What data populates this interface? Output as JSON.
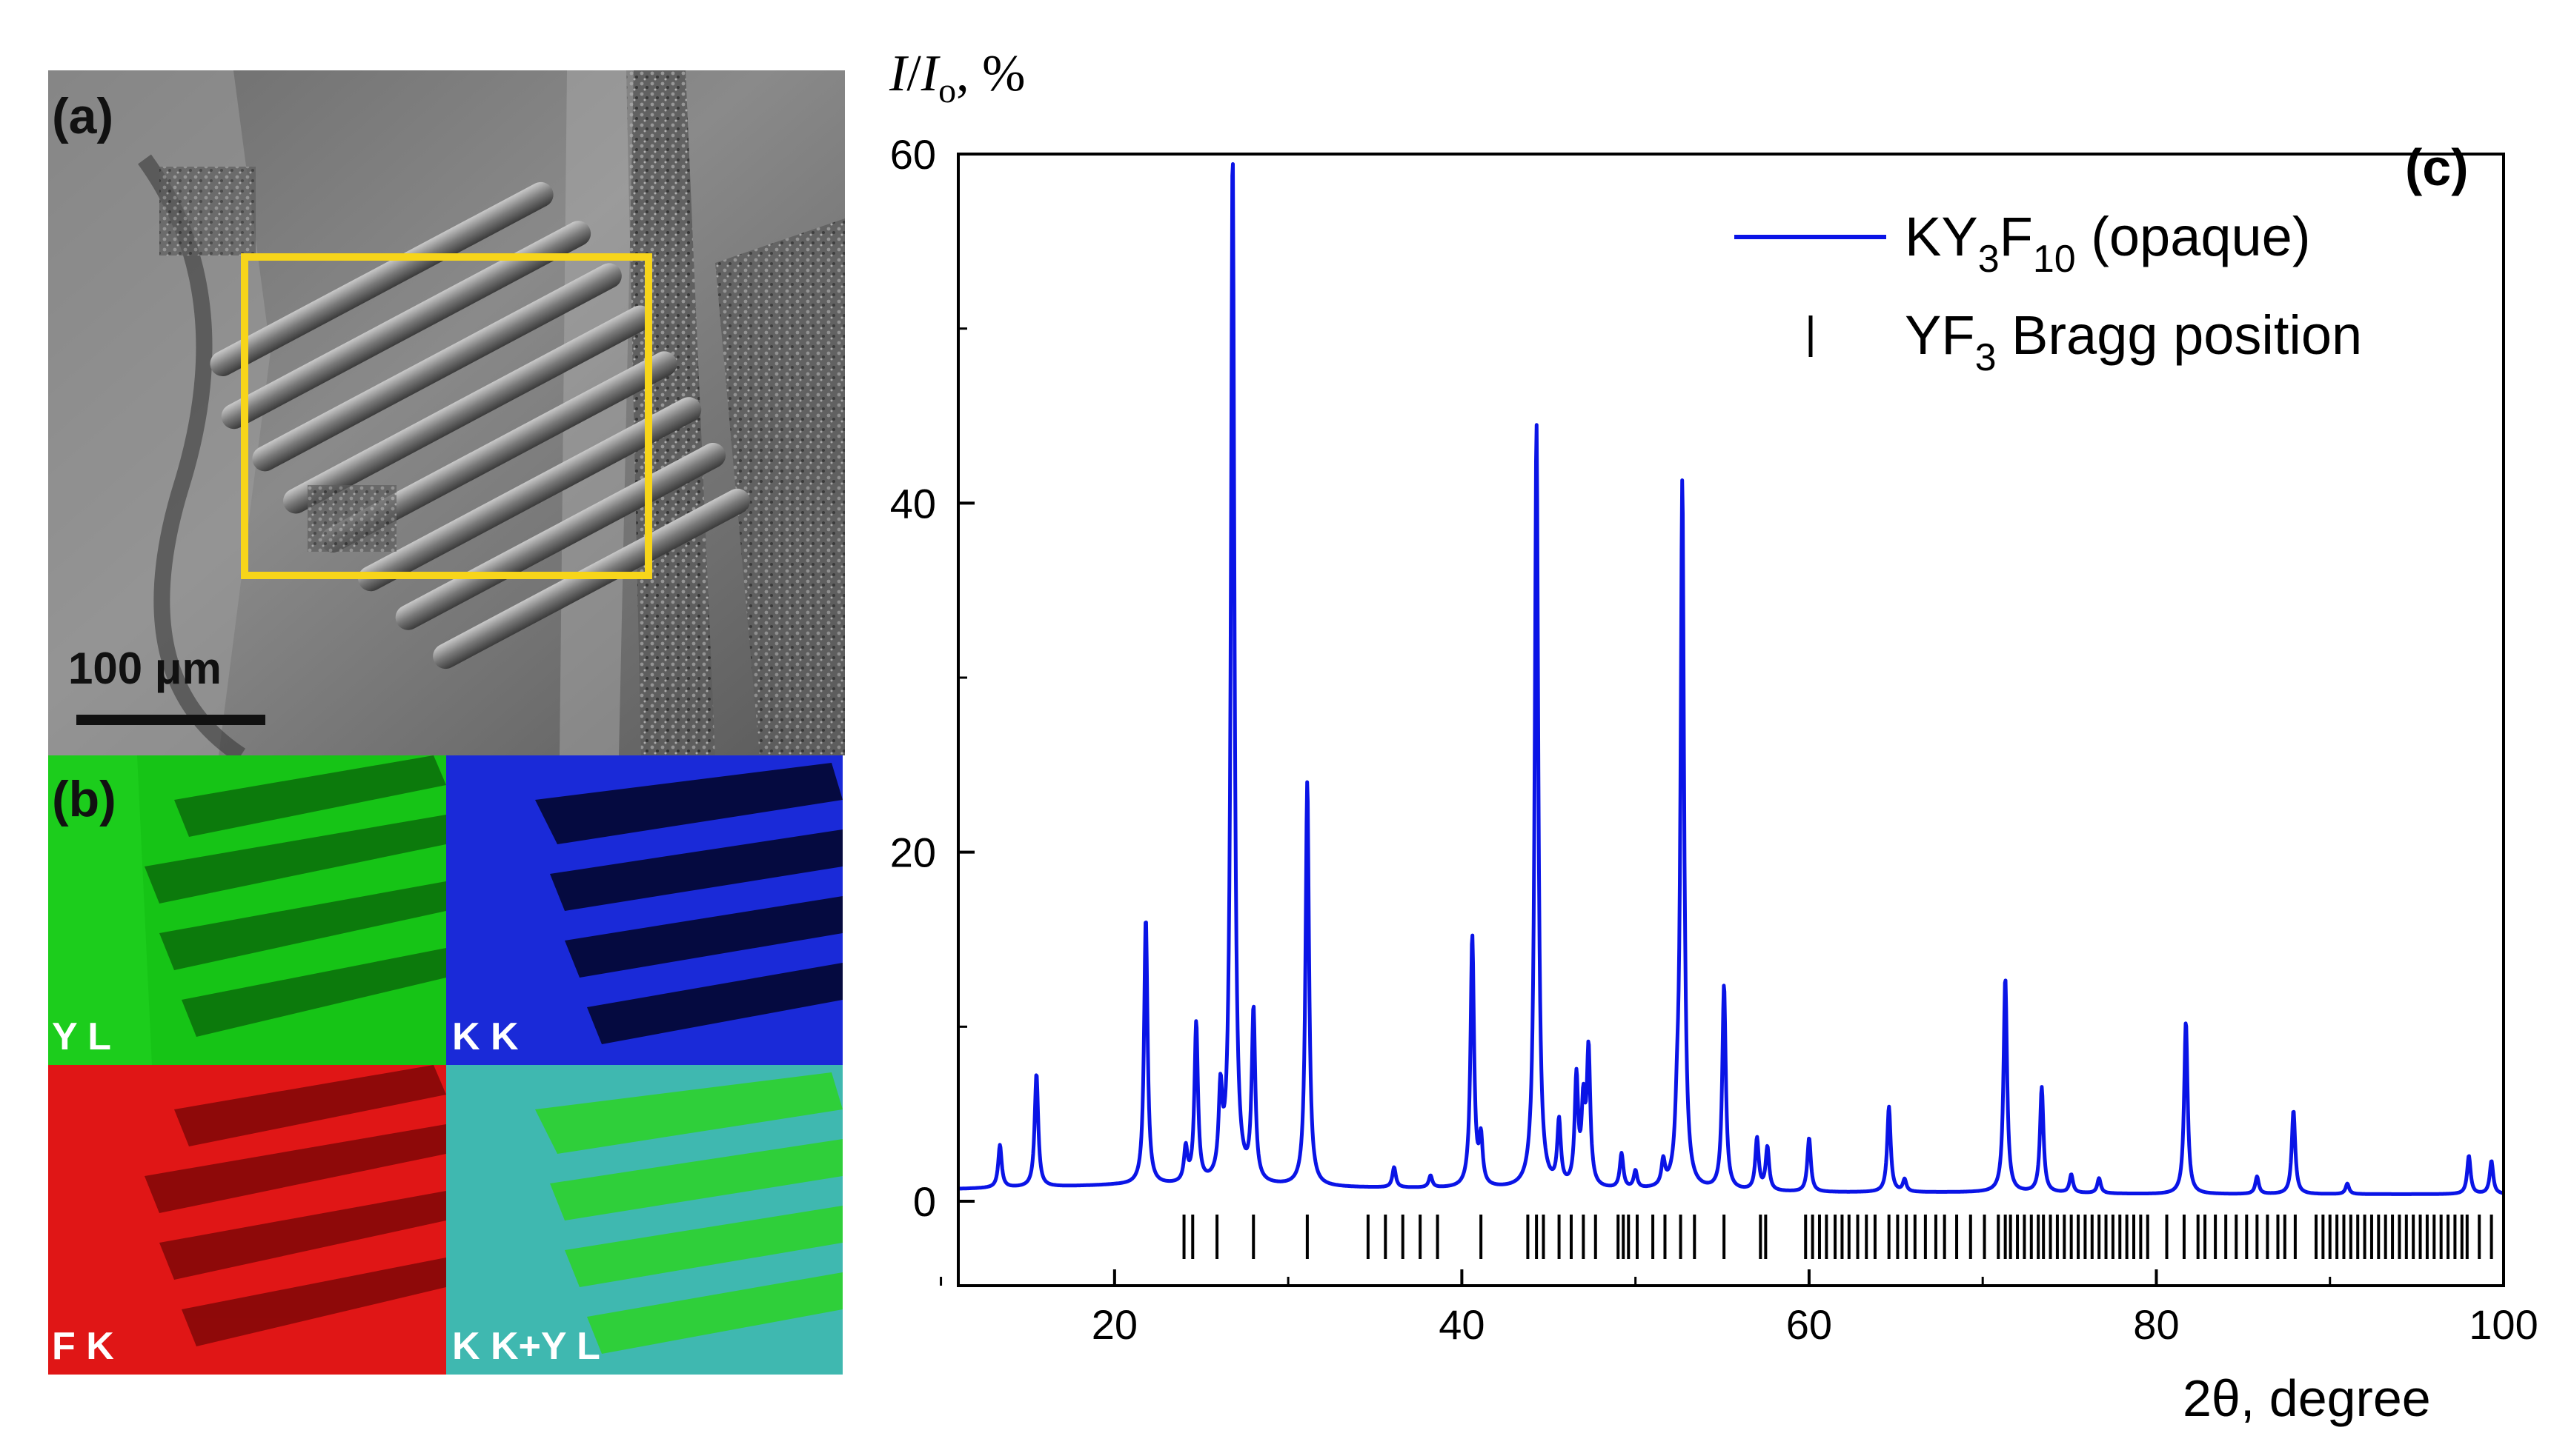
{
  "panels": {
    "a": {
      "label": "(a)",
      "scale_bar": "100 μm"
    },
    "b": {
      "label": "(b)",
      "maps": [
        "Y L",
        "K K",
        "F K",
        "K K+Y L"
      ]
    }
  },
  "colors": {
    "spectrum": "#0a14e6",
    "highlight_box": "#f7d51a",
    "map_y": "#16c416",
    "map_k": "#1a2ad8",
    "map_f": "#e01616",
    "map_kyl": "#3fb8b0"
  },
  "chart_data": {
    "type": "line",
    "panel_label": "(c)",
    "ylabel": {
      "italic_I": "I",
      "slash": "/",
      "italic_Io": "I",
      "sub_o": "o",
      "suffix": ", %"
    },
    "xlabel": "2θ, degree",
    "xlim": [
      11,
      100
    ],
    "ylim": [
      -5,
      60
    ],
    "x_ticks": [
      20,
      40,
      60,
      80,
      100
    ],
    "y_ticks": [
      0,
      20,
      40,
      60
    ],
    "legend": {
      "position": "top-right",
      "line_entry": {
        "pre": "KY",
        "sub1": "3",
        "mid": "F",
        "sub2": "10",
        "post": " (opaque)"
      },
      "tick_entry": {
        "pre": "YF",
        "sub1": "3",
        "post": " Bragg position"
      }
    },
    "series": [
      {
        "name": "KY3F10 (opaque)",
        "baseline": [
          [
            11,
            0.7
          ],
          [
            20,
            0.9
          ],
          [
            30,
            0.8
          ],
          [
            40,
            0.7
          ],
          [
            50,
            0.6
          ],
          [
            60,
            0.5
          ],
          [
            70,
            0.5
          ],
          [
            80,
            0.4
          ],
          [
            90,
            0.4
          ],
          [
            100,
            0.4
          ]
        ],
        "peaks": [
          {
            "x": 13.4,
            "y": 3.2
          },
          {
            "x": 15.5,
            "y": 7.3
          },
          {
            "x": 21.8,
            "y": 16.2
          },
          {
            "x": 24.1,
            "y": 2.8
          },
          {
            "x": 24.7,
            "y": 10.0
          },
          {
            "x": 26.1,
            "y": 5.5
          },
          {
            "x": 26.8,
            "y": 60.0
          },
          {
            "x": 28.0,
            "y": 10.6
          },
          {
            "x": 31.1,
            "y": 24.0
          },
          {
            "x": 36.1,
            "y": 1.9
          },
          {
            "x": 38.2,
            "y": 1.4
          },
          {
            "x": 40.6,
            "y": 15.1
          },
          {
            "x": 41.1,
            "y": 3.3
          },
          {
            "x": 44.3,
            "y": 44.5
          },
          {
            "x": 45.6,
            "y": 4.3
          },
          {
            "x": 46.6,
            "y": 6.8
          },
          {
            "x": 47.0,
            "y": 5.0
          },
          {
            "x": 47.3,
            "y": 8.3
          },
          {
            "x": 49.2,
            "y": 2.6
          },
          {
            "x": 50.0,
            "y": 1.6
          },
          {
            "x": 51.6,
            "y": 2.0
          },
          {
            "x": 52.4,
            "y": 3.1
          },
          {
            "x": 52.7,
            "y": 41.0
          },
          {
            "x": 55.1,
            "y": 12.3
          },
          {
            "x": 57.0,
            "y": 3.5
          },
          {
            "x": 57.6,
            "y": 3.0
          },
          {
            "x": 60.0,
            "y": 3.6
          },
          {
            "x": 64.6,
            "y": 5.4
          },
          {
            "x": 65.5,
            "y": 1.2
          },
          {
            "x": 71.3,
            "y": 12.8
          },
          {
            "x": 73.4,
            "y": 6.5
          },
          {
            "x": 75.1,
            "y": 1.5
          },
          {
            "x": 76.7,
            "y": 1.3
          },
          {
            "x": 81.7,
            "y": 10.3
          },
          {
            "x": 85.8,
            "y": 1.4
          },
          {
            "x": 87.9,
            "y": 5.2
          },
          {
            "x": 91.0,
            "y": 1.0
          },
          {
            "x": 98.0,
            "y": 2.6
          },
          {
            "x": 99.3,
            "y": 2.3
          }
        ]
      }
    ],
    "bragg_positions": [
      24.0,
      24.5,
      25.9,
      28.0,
      31.1,
      34.6,
      35.6,
      36.6,
      37.6,
      38.6,
      41.1,
      43.8,
      44.3,
      44.7,
      45.6,
      46.3,
      47.0,
      47.7,
      49.0,
      49.3,
      49.6,
      50.1,
      51.0,
      51.7,
      52.6,
      53.4,
      55.1,
      57.2,
      57.5,
      59.8,
      60.2,
      60.6,
      61.0,
      61.5,
      61.9,
      62.3,
      62.8,
      63.3,
      63.8,
      64.6,
      65.1,
      65.6,
      66.1,
      66.7,
      67.3,
      67.8,
      68.5,
      69.3,
      70.1,
      70.9,
      71.3,
      71.6,
      72.0,
      72.4,
      72.8,
      73.2,
      73.5,
      73.9,
      74.3,
      74.7,
      75.1,
      75.5,
      75.9,
      76.3,
      76.7,
      77.1,
      77.5,
      77.9,
      78.3,
      78.7,
      79.1,
      79.5,
      80.6,
      81.6,
      82.4,
      82.8,
      83.4,
      84.0,
      84.6,
      85.2,
      85.8,
      86.4,
      87.0,
      87.4,
      88.0,
      89.2,
      89.6,
      90.0,
      90.4,
      90.8,
      91.2,
      91.6,
      92.0,
      92.4,
      92.8,
      93.2,
      93.6,
      94.0,
      94.4,
      94.8,
      95.2,
      95.6,
      96.0,
      96.4,
      96.8,
      97.2,
      97.6,
      97.9,
      98.6,
      99.3
    ]
  }
}
